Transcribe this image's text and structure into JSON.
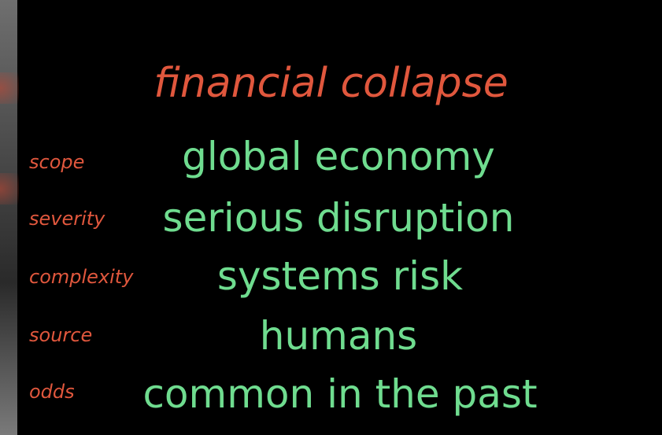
{
  "title": "financial collapse",
  "rows": [
    {
      "label": "scope",
      "value": "global economy"
    },
    {
      "label": "severity",
      "value": "serious disruption"
    },
    {
      "label": "complexity",
      "value": "systems risk"
    },
    {
      "label": "source",
      "value": "humans"
    },
    {
      "label": "odds",
      "value": "common in the past"
    }
  ],
  "colors": {
    "background": "#000000",
    "label": "#e0573d",
    "value": "#6fdc8f"
  }
}
